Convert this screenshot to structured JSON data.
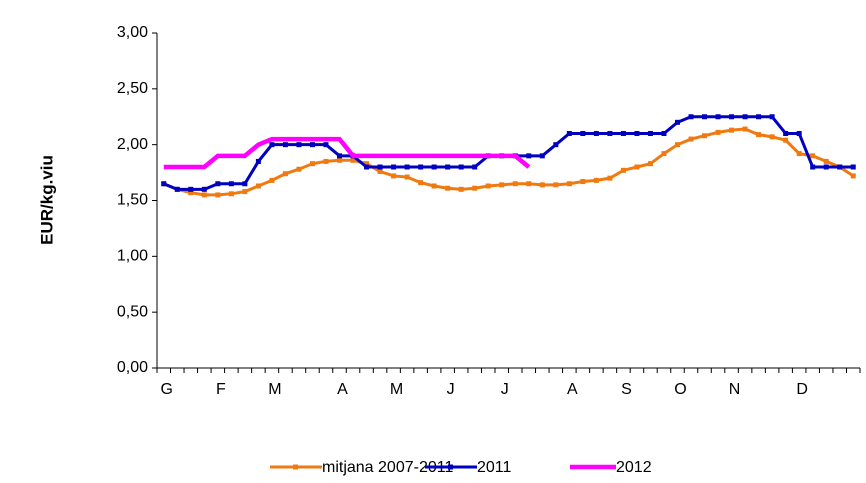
{
  "chart_data": {
    "type": "line",
    "y_label": "EUR/kg.viu",
    "categories": [
      "G",
      null,
      null,
      null,
      "F",
      null,
      null,
      null,
      "M",
      null,
      null,
      null,
      null,
      "A",
      null,
      null,
      null,
      "M",
      null,
      null,
      null,
      "J",
      null,
      null,
      null,
      "J",
      null,
      null,
      null,
      null,
      "A",
      null,
      null,
      null,
      "S",
      null,
      null,
      null,
      "O",
      null,
      null,
      null,
      "N",
      null,
      null,
      null,
      null,
      "D",
      null,
      null,
      null,
      null
    ],
    "series": [
      {
        "name": "mitjana 2007-2011",
        "color": "#f07a10",
        "marker": true,
        "values": [
          1.65,
          1.6,
          1.57,
          1.55,
          1.55,
          1.56,
          1.58,
          1.63,
          1.68,
          1.74,
          1.78,
          1.83,
          1.85,
          1.86,
          1.86,
          1.83,
          1.76,
          1.72,
          1.71,
          1.66,
          1.63,
          1.61,
          1.6,
          1.61,
          1.63,
          1.64,
          1.65,
          1.65,
          1.64,
          1.64,
          1.65,
          1.67,
          1.68,
          1.7,
          1.77,
          1.8,
          1.83,
          1.92,
          2.0,
          2.05,
          2.08,
          2.11,
          2.13,
          2.14,
          2.09,
          2.07,
          2.04,
          1.92,
          1.9,
          1.85,
          1.8,
          1.72
        ]
      },
      {
        "name": "2011",
        "color": "#0000c0",
        "marker": true,
        "values": [
          1.65,
          1.6,
          1.6,
          1.6,
          1.65,
          1.65,
          1.65,
          1.85,
          2.0,
          2.0,
          2.0,
          2.0,
          2.0,
          1.9,
          1.9,
          1.8,
          1.8,
          1.8,
          1.8,
          1.8,
          1.8,
          1.8,
          1.8,
          1.8,
          1.9,
          1.9,
          1.9,
          1.9,
          1.9,
          2.0,
          2.1,
          2.1,
          2.1,
          2.1,
          2.1,
          2.1,
          2.1,
          2.1,
          2.2,
          2.25,
          2.25,
          2.25,
          2.25,
          2.25,
          2.25,
          2.25,
          2.1,
          2.1,
          1.8,
          1.8,
          1.8,
          1.8
        ]
      },
      {
        "name": "2012",
        "color": "#ff00ff",
        "marker": false,
        "values": [
          1.8,
          1.8,
          1.8,
          1.8,
          1.9,
          1.9,
          1.9,
          2.0,
          2.05,
          2.05,
          2.05,
          2.05,
          2.05,
          2.05,
          1.9,
          1.9,
          1.9,
          1.9,
          1.9,
          1.9,
          1.9,
          1.9,
          1.9,
          1.9,
          1.9,
          1.9,
          1.9,
          1.8,
          null,
          null,
          null,
          null,
          null,
          null,
          null,
          null,
          null,
          null,
          null,
          null,
          null,
          null,
          null,
          null,
          null,
          null,
          null,
          null,
          null,
          null,
          null,
          null
        ]
      }
    ],
    "ylim": [
      0,
      3
    ],
    "yticks": [
      {
        "value": 0,
        "label": "0,00"
      },
      {
        "value": 0.5,
        "label": "0,50"
      },
      {
        "value": 1,
        "label": "1,00"
      },
      {
        "value": 1.5,
        "label": "1,50"
      },
      {
        "value": 2,
        "label": "2,00"
      },
      {
        "value": 2.5,
        "label": "2,50"
      },
      {
        "value": 3,
        "label": "3,00"
      }
    ],
    "grid": false
  }
}
